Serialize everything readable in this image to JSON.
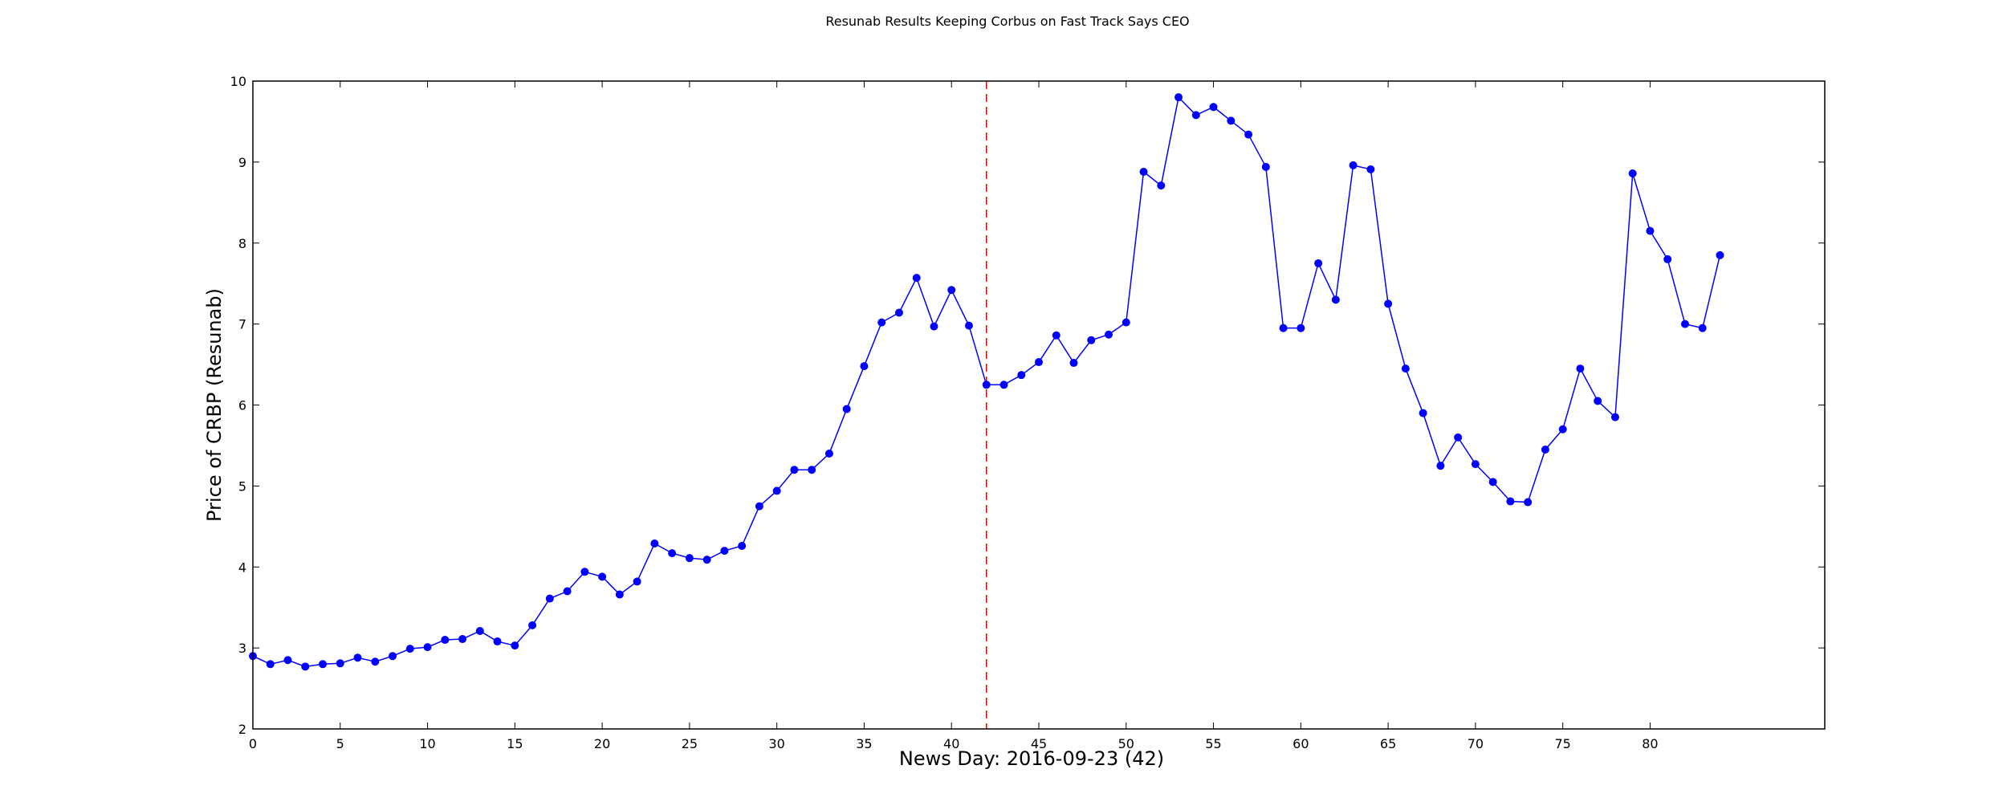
{
  "chart_data": {
    "type": "line",
    "title": "Resunab Results Keeping Corbus on Fast Track Says CEO",
    "xlabel": "News Day: 2016-09-23 (42)",
    "ylabel": "Price of CRBP (Resunab)",
    "xlim": [
      0,
      90
    ],
    "ylim": [
      2,
      10
    ],
    "xticks": [
      0,
      5,
      10,
      15,
      20,
      25,
      30,
      35,
      40,
      45,
      50,
      55,
      60,
      65,
      70,
      75,
      80
    ],
    "yticks": [
      2,
      3,
      4,
      5,
      6,
      7,
      8,
      9,
      10
    ],
    "grid": false,
    "marker_color": "#0000ff",
    "line_color": "#0000ff",
    "news_day_line": {
      "x": 42,
      "color": "#ff0000",
      "style": "dashed"
    },
    "series": [
      {
        "x": [
          0,
          1,
          2,
          3,
          4,
          5,
          6,
          7,
          8,
          9,
          10,
          11,
          12,
          13,
          14,
          15,
          16,
          17,
          18,
          19,
          20,
          21,
          22,
          23,
          24,
          25,
          26,
          27,
          28,
          29,
          30,
          31,
          32,
          33,
          34,
          35,
          36,
          37,
          38,
          39,
          40,
          41,
          42,
          43,
          44,
          45,
          46,
          47,
          48,
          49,
          50,
          51,
          52,
          53,
          54,
          55,
          56,
          57,
          58,
          59,
          60,
          61,
          62,
          63,
          64,
          65,
          66,
          67,
          68,
          69,
          70,
          71,
          72,
          73,
          74,
          75,
          76,
          77,
          78,
          79,
          80,
          81,
          82,
          83,
          84
        ],
        "values": [
          2.9,
          2.8,
          2.85,
          2.77,
          2.8,
          2.81,
          2.88,
          2.83,
          2.9,
          2.99,
          3.01,
          3.1,
          3.11,
          3.21,
          3.08,
          3.03,
          3.28,
          3.61,
          3.7,
          3.94,
          3.88,
          3.66,
          3.82,
          4.29,
          4.17,
          4.11,
          4.09,
          4.2,
          4.26,
          4.75,
          4.94,
          5.2,
          5.2,
          5.4,
          5.95,
          6.48,
          7.02,
          7.14,
          7.57,
          6.97,
          7.42,
          6.98,
          6.25,
          6.25,
          6.37,
          6.53,
          6.86,
          6.52,
          6.8,
          6.87,
          7.02,
          8.88,
          8.71,
          9.8,
          9.58,
          9.68,
          9.51,
          9.34,
          8.94,
          6.95,
          6.95,
          7.75,
          7.3,
          8.96,
          8.91,
          7.25,
          6.45,
          5.9,
          5.25,
          5.6,
          5.27,
          5.05,
          4.81,
          4.8,
          5.45,
          5.7,
          6.45,
          6.05,
          5.85,
          8.86,
          8.15,
          7.8,
          7.0,
          6.95,
          7.85
        ]
      }
    ]
  }
}
